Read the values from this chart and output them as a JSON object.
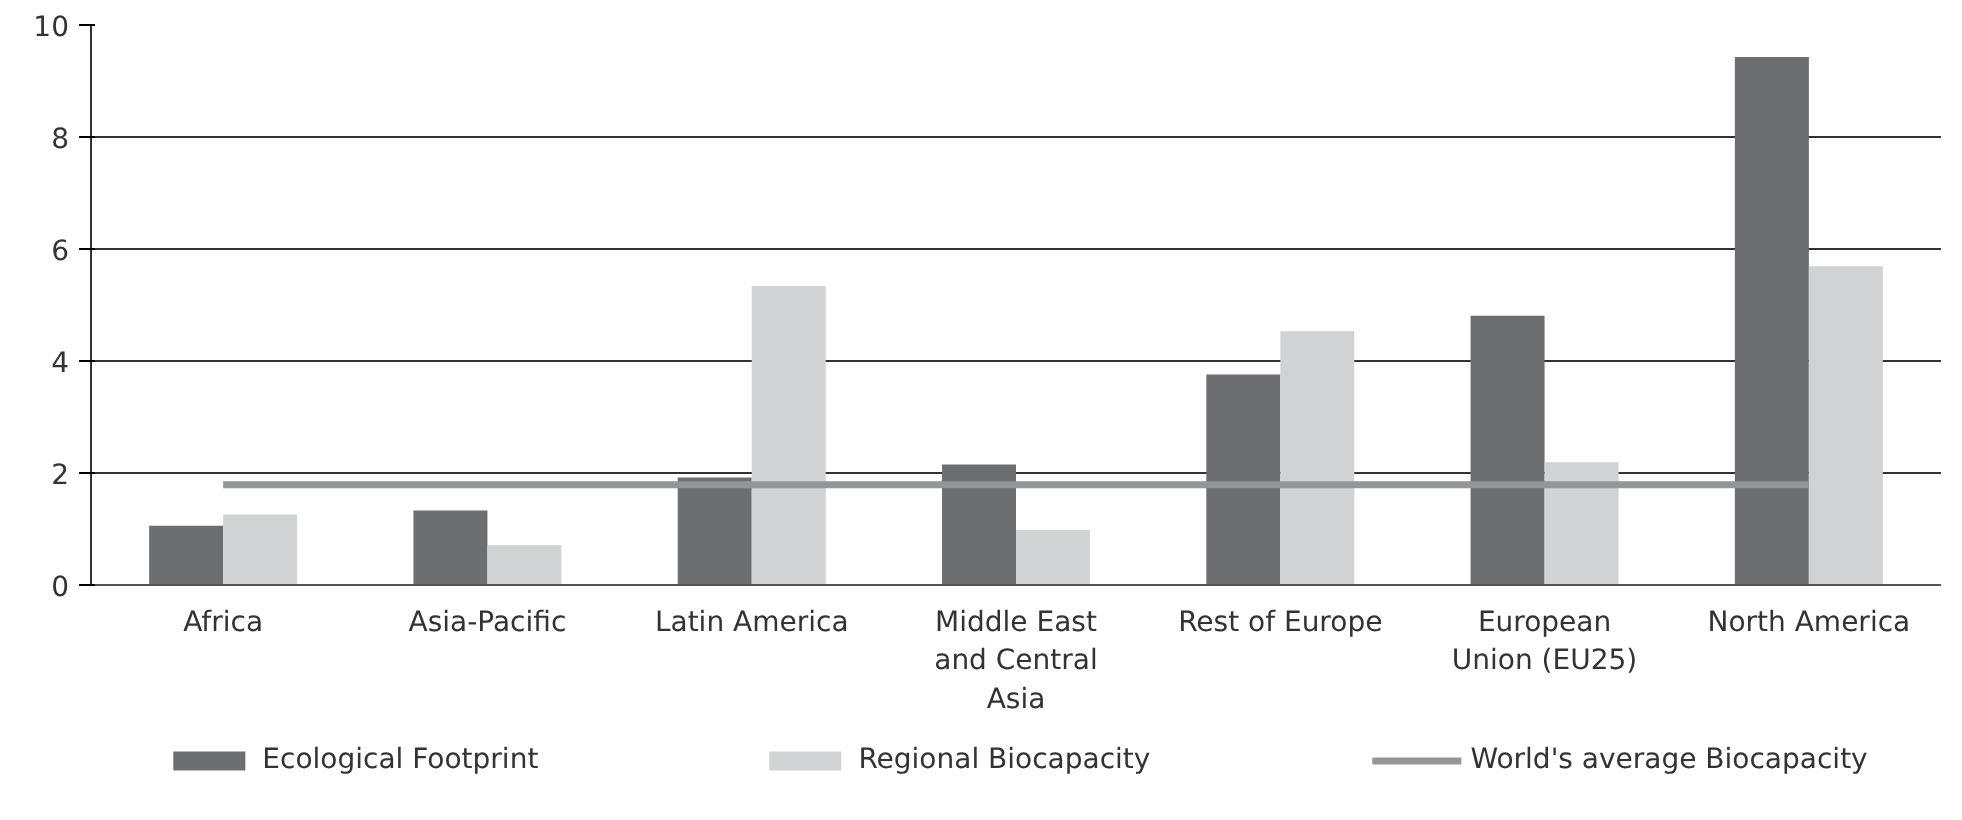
{
  "chart_data": {
    "type": "bar",
    "categories": [
      "Africa",
      "Asia-Pacific",
      "Latin America",
      "Middle East and Central Asia",
      "Rest of Europe",
      "European Union (EU25)",
      "North America"
    ],
    "series": [
      {
        "name": "Ecological Footprint",
        "color": "#6d6e71",
        "values": [
          1.06,
          1.33,
          1.92,
          2.15,
          3.76,
          4.81,
          9.43
        ]
      },
      {
        "name": "Regional Biocapacity",
        "color": "#d1d2d4",
        "values": [
          1.26,
          0.71,
          5.34,
          0.98,
          4.53,
          2.19,
          5.69
        ]
      },
      {
        "name": "World's average Biocapacity",
        "type": "line",
        "color": "#939598",
        "values": [
          1.79,
          1.79,
          1.79,
          1.79,
          1.79,
          1.79,
          1.79
        ]
      }
    ],
    "ylim": [
      0,
      10
    ],
    "yticks": [
      0,
      2,
      4,
      6,
      8,
      10
    ],
    "grid": "y",
    "legend": "bottom"
  }
}
